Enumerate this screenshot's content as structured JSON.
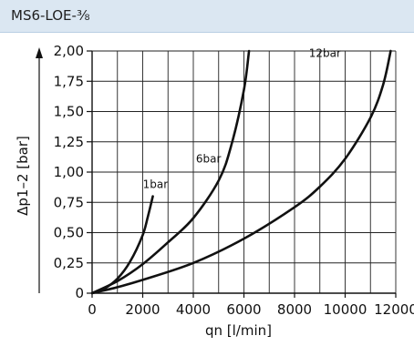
{
  "header": {
    "title": "MS6-LOE-⅜",
    "background": "#dbe7f2"
  },
  "chart_data": {
    "type": "line",
    "title": "",
    "xlabel": "qn [l/min]",
    "ylabel": "Δp1–2 [bar]",
    "xlim": [
      0,
      12000
    ],
    "ylim": [
      0,
      2.0
    ],
    "x_ticks": [
      0,
      2000,
      4000,
      6000,
      8000,
      10000,
      12000
    ],
    "x_tick_labels": [
      "0",
      "2000",
      "4000",
      "6000",
      "8000",
      "10000",
      "12000"
    ],
    "y_ticks": [
      0,
      0.25,
      0.5,
      0.75,
      1.0,
      1.25,
      1.5,
      1.75,
      2.0
    ],
    "y_tick_labels": [
      "0",
      "0,25",
      "0,50",
      "0,75",
      "1,00",
      "1,25",
      "1,50",
      "1,75",
      "2,00"
    ],
    "grid": true,
    "series": [
      {
        "name": "1bar",
        "x": [
          0,
          500,
          1000,
          1500,
          2000,
          2200,
          2400
        ],
        "y": [
          0,
          0.04,
          0.12,
          0.26,
          0.48,
          0.63,
          0.8
        ]
      },
      {
        "name": "6bar",
        "x": [
          0,
          1000,
          2000,
          3000,
          4000,
          5000,
          5500,
          6000,
          6200
        ],
        "y": [
          0,
          0.1,
          0.24,
          0.42,
          0.62,
          0.93,
          1.22,
          1.68,
          2.0
        ]
      },
      {
        "name": "12bar",
        "x": [
          0,
          1000,
          2000,
          4000,
          6000,
          8000,
          9000,
          10000,
          11000,
          11500,
          11800
        ],
        "y": [
          0,
          0.05,
          0.11,
          0.25,
          0.45,
          0.71,
          0.88,
          1.11,
          1.45,
          1.72,
          2.0
        ]
      }
    ],
    "label_positions": {
      "1bar": [
        2500,
        0.87
      ],
      "6bar": [
        4600,
        1.08
      ],
      "12bar": [
        9200,
        1.95
      ]
    }
  }
}
